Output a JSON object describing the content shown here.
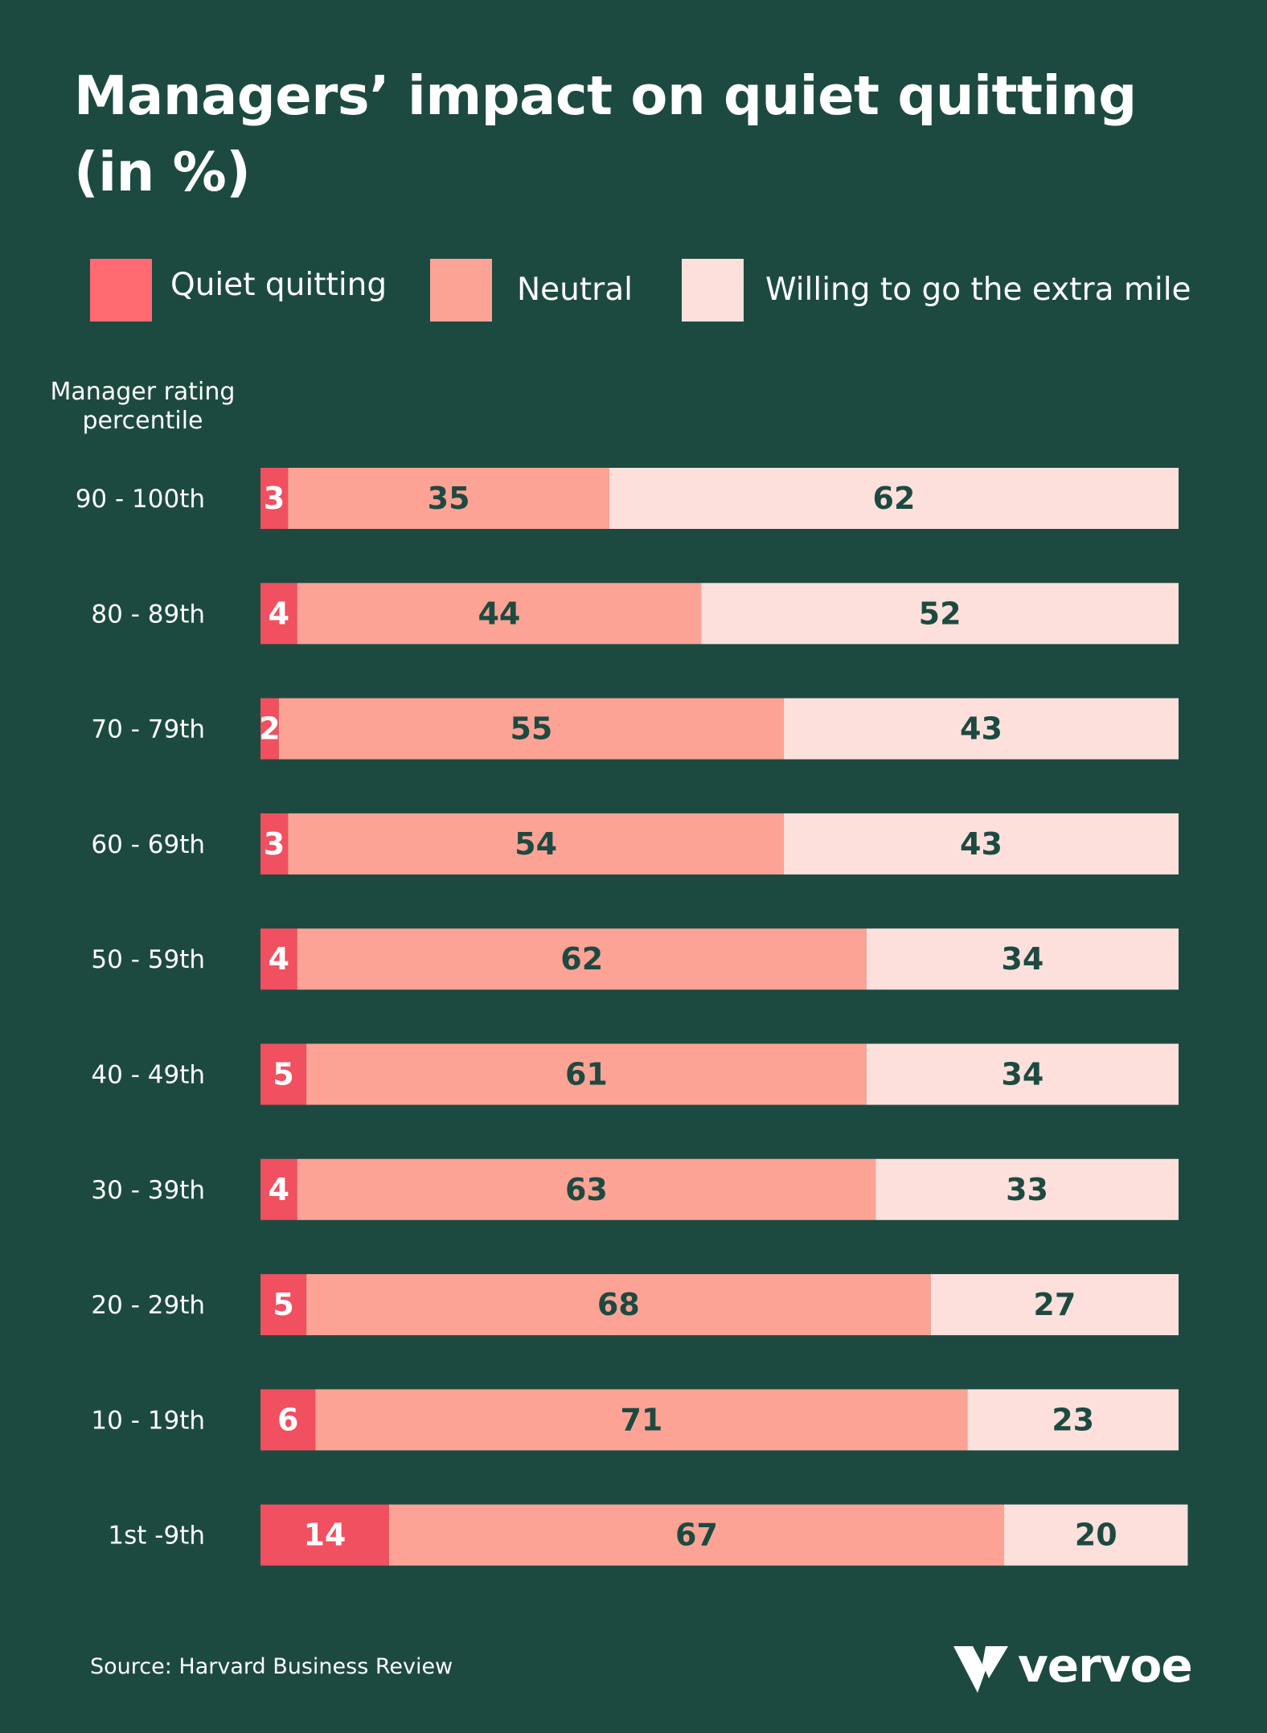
{
  "chart_data": {
    "type": "bar",
    "orientation": "horizontal",
    "stacked": true,
    "title": "Managers’ impact on quiet quitting (in %)",
    "ylabel": "Manager rating percentile",
    "categories": [
      "90 - 100th",
      "80 - 89th",
      "70 - 79th",
      "60 - 69th",
      "50 - 59th",
      "40 - 49th",
      "30 - 39th",
      "20 - 29th",
      "10 - 19th",
      "1st -9th"
    ],
    "series": [
      {
        "name": "Quiet quitting",
        "color": "#f0505f",
        "label_color": "#ffffff",
        "values": [
          3,
          4,
          2,
          3,
          4,
          5,
          4,
          5,
          6,
          14
        ]
      },
      {
        "name": "Neutral",
        "color": "#fca396",
        "label_color": "#1d4a40",
        "values": [
          35,
          44,
          55,
          54,
          62,
          61,
          63,
          68,
          71,
          67
        ]
      },
      {
        "name": "Willing to go the extra mile",
        "color": "#fde0dc",
        "label_color": "#1d4a40",
        "values": [
          62,
          52,
          43,
          43,
          34,
          34,
          33,
          27,
          23,
          20
        ]
      }
    ],
    "legend_position": "top",
    "grid": false
  },
  "legend_colors": {
    "quiet_quitting": "#ff6b71",
    "neutral": "#fca396",
    "extra_mile": "#fde0dc"
  },
  "footer": {
    "source": "Source: Harvard Business Review",
    "brand": "vervoe"
  }
}
